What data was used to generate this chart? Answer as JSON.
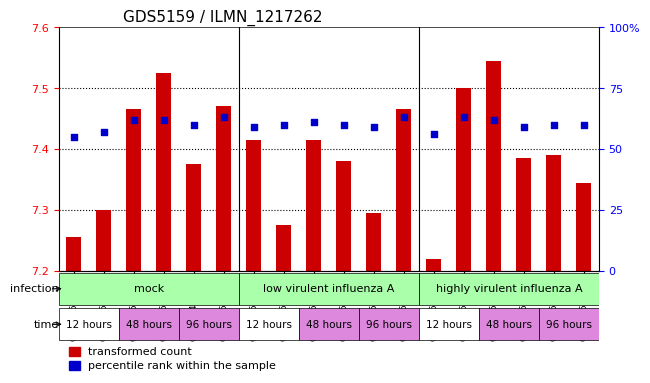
{
  "title": "GDS5159 / ILMN_1217262",
  "samples": [
    "GSM1350009",
    "GSM1350011",
    "GSM1350020",
    "GSM1350021",
    "GSM1349996",
    "GSM1350000",
    "GSM1350013",
    "GSM1350015",
    "GSM1350022",
    "GSM1350023",
    "GSM1350002",
    "GSM1350003",
    "GSM1350017",
    "GSM1350019",
    "GSM1350024",
    "GSM1350025",
    "GSM1350005",
    "GSM1350007"
  ],
  "bar_values": [
    7.255,
    7.3,
    7.465,
    7.525,
    7.375,
    7.47,
    7.415,
    7.275,
    7.415,
    7.38,
    7.295,
    7.465,
    7.22,
    7.5,
    7.545,
    7.385,
    7.39,
    7.345
  ],
  "percentile_values": [
    55,
    57,
    62,
    62,
    60,
    63,
    59,
    60,
    61,
    60,
    59,
    63,
    56,
    63,
    62,
    59,
    60,
    60
  ],
  "ylim": [
    7.2,
    7.6
  ],
  "yticks": [
    7.2,
    7.3,
    7.4,
    7.5,
    7.6
  ],
  "right_yticks": [
    0,
    25,
    50,
    75,
    100
  ],
  "right_ytick_labels": [
    "0",
    "25",
    "50",
    "75",
    "100%"
  ],
  "bar_color": "#cc0000",
  "dot_color": "#0000cc",
  "infection_groups": [
    {
      "label": "mock",
      "start": 0,
      "end": 6,
      "color": "#aaffaa"
    },
    {
      "label": "low virulent influenza A",
      "start": 6,
      "end": 12,
      "color": "#aaffaa"
    },
    {
      "label": "highly virulent influenza A",
      "start": 12,
      "end": 18,
      "color": "#aaffaa"
    }
  ],
  "time_groups": [
    {
      "label": "12 hours",
      "start": 0,
      "end": 2,
      "color": "#ffffff"
    },
    {
      "label": "48 hours",
      "start": 2,
      "end": 4,
      "color": "#dd88dd"
    },
    {
      "label": "96 hours",
      "start": 4,
      "end": 6,
      "color": "#dd88dd"
    },
    {
      "label": "12 hours",
      "start": 6,
      "end": 8,
      "color": "#ffffff"
    },
    {
      "label": "48 hours",
      "start": 8,
      "end": 10,
      "color": "#dd88dd"
    },
    {
      "label": "96 hours",
      "start": 10,
      "end": 12,
      "color": "#dd88dd"
    },
    {
      "label": "12 hours",
      "start": 12,
      "end": 14,
      "color": "#ffffff"
    },
    {
      "label": "48 hours",
      "start": 14,
      "end": 16,
      "color": "#dd88dd"
    },
    {
      "label": "96 hours",
      "start": 16,
      "end": 18,
      "color": "#dd88dd"
    }
  ],
  "legend_items": [
    {
      "label": "transformed count",
      "color": "#cc0000",
      "marker": "s"
    },
    {
      "label": "percentile rank within the sample",
      "color": "#0000cc",
      "marker": "s"
    }
  ],
  "infection_label": "infection",
  "time_label": "time",
  "n": 18
}
